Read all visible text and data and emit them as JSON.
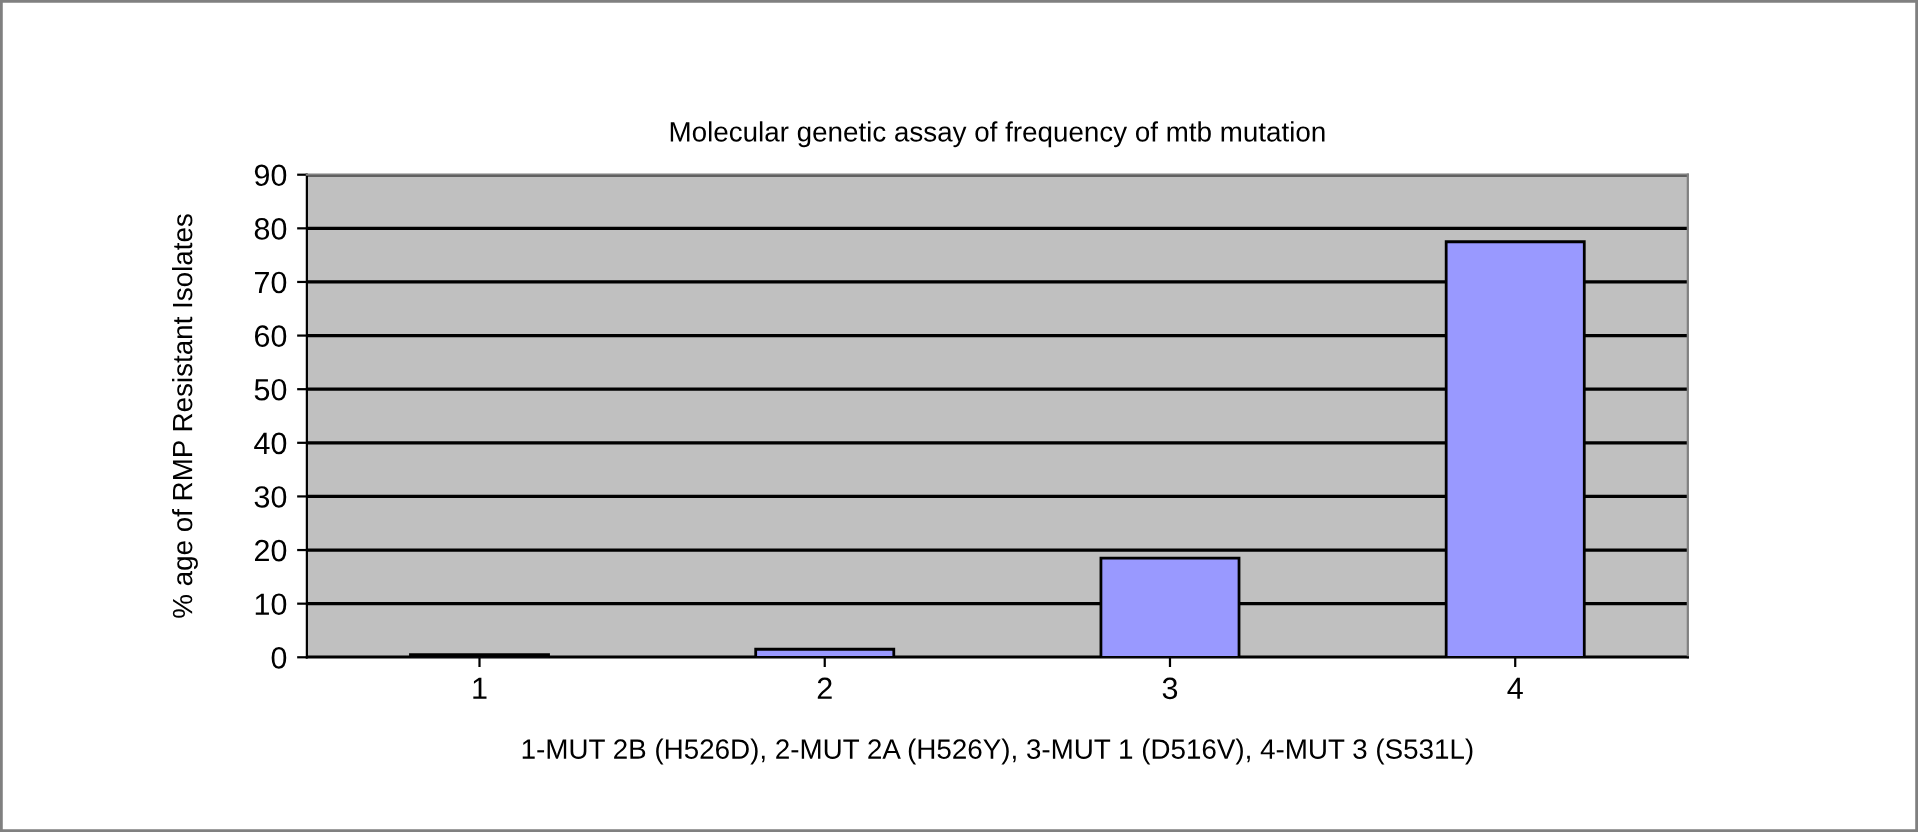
{
  "chart_data": {
    "type": "bar",
    "title": "Molecular genetic assay of frequency of mtb mutation",
    "xlabel": "1-MUT 2B (H526D), 2-MUT 2A (H526Y), 3-MUT 1 (D516V), 4-MUT 3 (S531L)",
    "ylabel": "% age of RMP Resistant Isolates",
    "categories": [
      "1",
      "2",
      "3",
      "4"
    ],
    "values": [
      0.5,
      1.5,
      18.5,
      77.5
    ],
    "color": "#9999ff",
    "ylim": [
      0,
      90
    ],
    "yticks": [
      0,
      10,
      20,
      30,
      40,
      50,
      60,
      70,
      80,
      90
    ],
    "grid": "y"
  }
}
